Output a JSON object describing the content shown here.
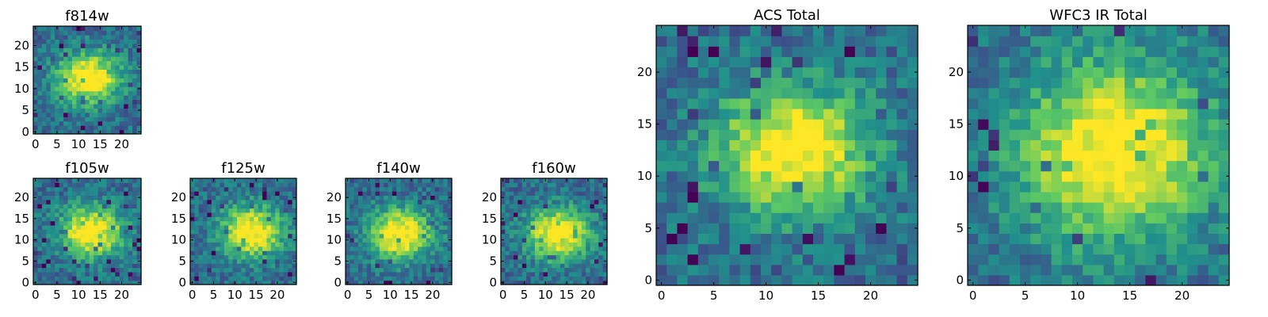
{
  "chart_data": [
    {
      "type": "heatmap",
      "title": "f814w",
      "x_ticks": [
        "0",
        "5",
        "10",
        "15",
        "20"
      ],
      "y_ticks": [
        "0",
        "5",
        "10",
        "15",
        "20"
      ],
      "xlim": [
        -0.5,
        24.5
      ],
      "ylim": [
        -0.5,
        24.5
      ],
      "peak": [
        12.5,
        12.5
      ],
      "grid_size": 25
    },
    {
      "type": "heatmap",
      "title": "f105w",
      "x_ticks": [
        "0",
        "5",
        "10",
        "15",
        "20"
      ],
      "y_ticks": [
        "0",
        "5",
        "10",
        "15",
        "20"
      ],
      "xlim": [
        -0.5,
        24.5
      ],
      "ylim": [
        -0.5,
        24.5
      ],
      "peak": [
        13,
        12
      ],
      "grid_size": 25
    },
    {
      "type": "heatmap",
      "title": "f125w",
      "x_ticks": [
        "0",
        "5",
        "10",
        "15",
        "20"
      ],
      "y_ticks": [
        "0",
        "5",
        "10",
        "15",
        "20"
      ],
      "xlim": [
        -0.5,
        24.5
      ],
      "ylim": [
        -0.5,
        24.5
      ],
      "peak": [
        14,
        12
      ],
      "grid_size": 25
    },
    {
      "type": "heatmap",
      "title": "f140w",
      "x_ticks": [
        "0",
        "5",
        "10",
        "15",
        "20"
      ],
      "y_ticks": [
        "0",
        "5",
        "10",
        "15",
        "20"
      ],
      "xlim": [
        -0.5,
        24.5
      ],
      "ylim": [
        -0.5,
        24.5
      ],
      "peak": [
        12.5,
        11.5
      ],
      "grid_size": 25
    },
    {
      "type": "heatmap",
      "title": "f160w",
      "x_ticks": [
        "0",
        "5",
        "10",
        "15",
        "20"
      ],
      "y_ticks": [
        "0",
        "5",
        "10",
        "15",
        "20"
      ],
      "xlim": [
        -0.5,
        24.5
      ],
      "ylim": [
        -0.5,
        24.5
      ],
      "peak": [
        13,
        11.5
      ],
      "grid_size": 25
    },
    {
      "type": "heatmap",
      "title": "ACS Total",
      "x_ticks": [
        "0",
        "5",
        "10",
        "15",
        "20"
      ],
      "y_ticks": [
        "0",
        "5",
        "10",
        "15",
        "20"
      ],
      "xlim": [
        -0.5,
        24.5
      ],
      "ylim": [
        -0.5,
        24.5
      ],
      "peak": [
        12.5,
        12.5
      ],
      "grid_size": 25
    },
    {
      "type": "heatmap",
      "title": "WFC3 IR Total",
      "x_ticks": [
        "0",
        "5",
        "10",
        "15",
        "20"
      ],
      "y_ticks": [
        "0",
        "5",
        "10",
        "15",
        "20"
      ],
      "xlim": [
        -0.5,
        24.5
      ],
      "ylim": [
        -0.5,
        24.5
      ],
      "peak": [
        13.5,
        12.5
      ],
      "grid_size": 25
    }
  ],
  "colormap": [
    "#440154",
    "#3b528b",
    "#21918c",
    "#5ec962",
    "#fde725"
  ]
}
